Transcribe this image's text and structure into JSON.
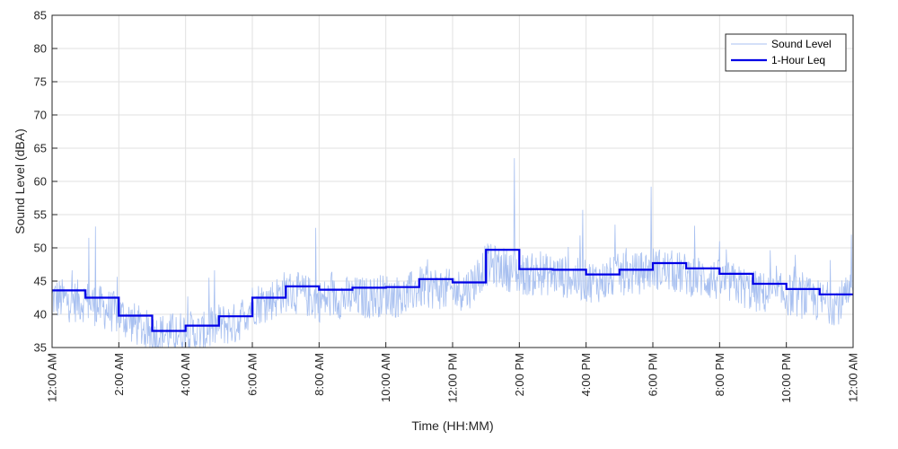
{
  "chart_data": {
    "type": "line",
    "xlabel": "Time (HH:MM)",
    "ylabel": "Sound Level (dBA)",
    "xlim": [
      0,
      24
    ],
    "ylim": [
      35,
      85
    ],
    "x_ticks": [
      0,
      2,
      4,
      6,
      8,
      10,
      12,
      14,
      16,
      18,
      20,
      22,
      24
    ],
    "x_tick_labels": [
      "12:00 AM",
      "2:00 AM",
      "4:00 AM",
      "6:00 AM",
      "8:00 AM",
      "10:00 AM",
      "12:00 PM",
      "2:00 PM",
      "4:00 PM",
      "6:00 PM",
      "8:00 PM",
      "10:00 PM",
      "12:00 AM"
    ],
    "y_ticks": [
      35,
      40,
      45,
      50,
      55,
      60,
      65,
      70,
      75,
      80,
      85
    ],
    "y_tick_labels": [
      "35",
      "40",
      "45",
      "50",
      "55",
      "60",
      "65",
      "70",
      "75",
      "80",
      "85"
    ],
    "grid": true,
    "legend_position": "top-right",
    "series": [
      {
        "name": "Sound Level",
        "color": "#a8c0f0",
        "style": "thin-line",
        "note_values": "dense noisy signal, approximate local levels by hour",
        "x": [
          0,
          0.5,
          1,
          1.5,
          2,
          2.5,
          3,
          3.5,
          4,
          4.5,
          5,
          5.5,
          6,
          6.5,
          7,
          7.5,
          8,
          8.5,
          9,
          9.5,
          10,
          10.5,
          11,
          11.5,
          12,
          12.5,
          13,
          13.5,
          14,
          14.5,
          15,
          15.5,
          16,
          16.5,
          17,
          17.5,
          18,
          18.5,
          19,
          19.5,
          20,
          20.5,
          21,
          21.5,
          22,
          22.5,
          23,
          23.5,
          24
        ],
        "values": [
          42.5,
          42,
          42,
          41,
          40,
          38.5,
          37,
          37,
          37.5,
          37,
          38.5,
          38.5,
          41.5,
          42,
          43.5,
          43,
          42,
          42.5,
          42.5,
          42.5,
          43,
          42.5,
          44,
          44,
          43.5,
          44,
          47.5,
          47,
          46,
          46,
          46,
          45.5,
          45,
          45,
          46,
          46,
          47,
          46.5,
          46,
          45.5,
          45,
          44.5,
          43.5,
          43,
          43,
          42.5,
          42,
          41.5,
          43
        ],
        "peaks": [
          [
            1.1,
            51.5
          ],
          [
            1.3,
            53.2
          ],
          [
            4.7,
            45.5
          ],
          [
            7.9,
            53.0
          ],
          [
            13.85,
            63.5
          ],
          [
            15.9,
            55.7
          ],
          [
            17.95,
            59.2
          ],
          [
            23.95,
            52.0
          ]
        ]
      },
      {
        "name": "1-Hour Leq",
        "color": "#0000e6",
        "style": "step",
        "x": [
          0,
          1,
          2,
          3,
          4,
          5,
          6,
          7,
          8,
          9,
          10,
          11,
          12,
          13,
          14,
          15,
          16,
          17,
          18,
          19,
          20,
          21,
          22,
          23
        ],
        "values": [
          43.6,
          42.5,
          39.8,
          37.5,
          38.3,
          39.7,
          42.5,
          44.2,
          43.7,
          44.0,
          44.1,
          45.3,
          44.8,
          49.7,
          46.8,
          46.7,
          46.0,
          46.7,
          47.7,
          46.9,
          46.1,
          44.6,
          43.8,
          43.0
        ]
      }
    ]
  }
}
